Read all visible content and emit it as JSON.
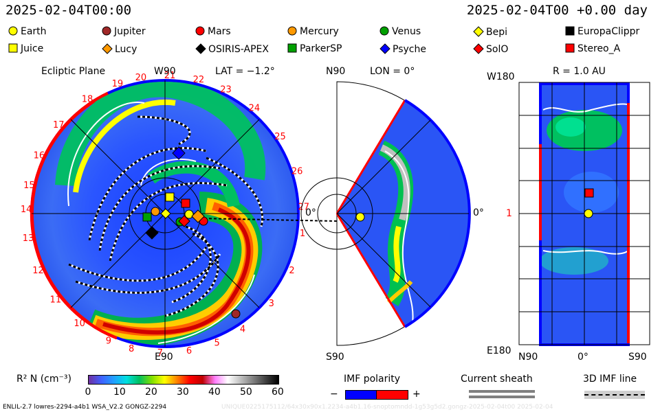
{
  "header": {
    "date_left": "2025-02-04T00:00",
    "date_right": "2025-02-04T00 +0.00 day"
  },
  "bodies": [
    {
      "name": "Earth",
      "marker": "circle",
      "color": "#ffff00"
    },
    {
      "name": "Jupiter",
      "marker": "circle",
      "color": "#a02828"
    },
    {
      "name": "Mars",
      "marker": "circle",
      "color": "#ff0000"
    },
    {
      "name": "Mercury",
      "marker": "circle",
      "color": "#ff9900"
    },
    {
      "name": "Venus",
      "marker": "circle",
      "color": "#00a000"
    },
    {
      "name": "Bepi",
      "marker": "diamond",
      "color": "#ffff00"
    },
    {
      "name": "EuropaClippr",
      "marker": "square",
      "color": "#000000"
    },
    {
      "name": "Juice",
      "marker": "square",
      "color": "#ffff00"
    },
    {
      "name": "Lucy",
      "marker": "diamond",
      "color": "#ff9900"
    },
    {
      "name": "OSIRIS-APEX",
      "marker": "diamond",
      "color": "#000000"
    },
    {
      "name": "ParkerSP",
      "marker": "square",
      "color": "#00a000"
    },
    {
      "name": "Psyche",
      "marker": "diamond",
      "color": "#0000ff"
    },
    {
      "name": "SolO",
      "marker": "diamond",
      "color": "#ff0000"
    },
    {
      "name": "Stereo_A",
      "marker": "square",
      "color": "#ff0000"
    }
  ],
  "panels": {
    "ecliptic": {
      "title": "Ecliptic Plane",
      "top": "W90",
      "lat": "LAT = −1.2°",
      "bottom": "E90",
      "right": "0°",
      "carrington": [
        "19",
        "20",
        "21",
        "22",
        "23",
        "24",
        "25",
        "26",
        "27",
        "18",
        "17",
        "16",
        "15",
        "14",
        "13",
        "12",
        "11",
        "10",
        "9",
        "8",
        "7",
        "6",
        "5",
        "4",
        "3",
        "2",
        "1"
      ]
    },
    "meridional": {
      "top": "N90",
      "lon": "LON = 0°",
      "bottom": "S90",
      "right": "0°"
    },
    "map": {
      "title": "R = 1.0 AU",
      "top_left": "W180",
      "bottom_left": "E180",
      "left_tick": "1",
      "x_left": "N90",
      "x_mid": "0°",
      "x_right": "S90"
    }
  },
  "colorbar": {
    "label": "R² N (cm⁻³)",
    "ticks": [
      "0",
      "10",
      "20",
      "30",
      "40",
      "50",
      "60"
    ],
    "stops": [
      "#7030a0",
      "#4060ff",
      "#20a0ff",
      "#00e0e0",
      "#00c060",
      "#80e000",
      "#ffff00",
      "#ff8000",
      "#ff0000",
      "#c00000",
      "#ff80ff",
      "#ffffff",
      "#c0c0c0",
      "#808080",
      "#404040",
      "#000000"
    ]
  },
  "imf": {
    "title": "IMF polarity",
    "minus": "−",
    "plus": "+",
    "neg_color": "#0000ff",
    "pos_color": "#ff0000"
  },
  "sheath": {
    "title": "Current sheath"
  },
  "imfline": {
    "title": "3D IMF line"
  },
  "footer": {
    "left": "ENLIL-2.7 lowres-2294-a4b1 WSA_V2.2 GONGZ-2294",
    "right": "UNIQUE0225175112/64x30x90x1.2234-a4b1.16-snoptomndd-1g53g5d2.gongz-2025-02-04t00   2025-02-04"
  }
}
